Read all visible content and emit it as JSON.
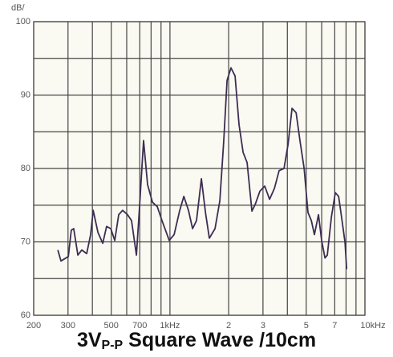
{
  "chart_data": {
    "type": "line",
    "title": {
      "main": "3V",
      "sub": "P-P",
      "rest": " Square Wave /10cm"
    },
    "y_label": "dB/",
    "x_scale": "log",
    "grid": true,
    "xlim": [
      200,
      10000
    ],
    "ylim": [
      60,
      100
    ],
    "xticks": [
      200,
      300,
      500,
      700,
      {
        "value": 1000,
        "label": "1kHz"
      },
      {
        "value": 2000,
        "label": "2"
      },
      {
        "value": 3000,
        "label": "3"
      },
      {
        "value": 5000,
        "label": "5"
      },
      {
        "value": 7000,
        "label": "7"
      },
      {
        "value": 10000,
        "label": "10kHz"
      }
    ],
    "x_minor_grid": [
      400,
      600,
      800,
      900,
      4000,
      6000,
      8000,
      9000
    ],
    "yticks": [
      60,
      70,
      80,
      90,
      100
    ],
    "y_minor_grid": [
      65,
      75,
      85,
      95
    ],
    "series": [
      {
        "color": "#3d2d52",
        "x": [
          266,
          276,
          301,
          312,
          321,
          337,
          353,
          374,
          392,
          404,
          427,
          452,
          473,
          497,
          521,
          546,
          572,
          606,
          635,
          673,
          698,
          732,
          768,
          813,
          861,
          910,
          991,
          1050,
          1122,
          1178,
          1245,
          1306,
          1368,
          1449,
          1521,
          1592,
          1702,
          1803,
          1888,
          1963,
          2056,
          2158,
          2260,
          2372,
          2488,
          2632,
          2736,
          2892,
          3062,
          3243,
          3436,
          3631,
          3846,
          4036,
          4227,
          4436,
          4645,
          4875,
          5105,
          5309,
          5508,
          5781,
          5998,
          6237,
          6412,
          6730,
          7047,
          7328,
          7604,
          7907,
          8054
        ],
        "values": [
          68.9,
          67.4,
          68.0,
          71.6,
          71.8,
          68.2,
          68.9,
          68.4,
          71.0,
          74.3,
          71.3,
          69.8,
          72.1,
          71.8,
          70.2,
          73.7,
          74.3,
          73.7,
          72.9,
          68.2,
          74.8,
          83.8,
          77.8,
          75.4,
          74.8,
          72.9,
          70.2,
          71.0,
          74.3,
          76.2,
          74.3,
          71.8,
          72.9,
          78.6,
          74.0,
          70.5,
          71.8,
          75.6,
          83.8,
          92.0,
          93.7,
          92.6,
          86.0,
          82.2,
          80.8,
          74.2,
          75.1,
          76.9,
          77.6,
          75.8,
          77.3,
          79.7,
          80.0,
          83.3,
          88.2,
          87.6,
          83.8,
          80.0,
          74.0,
          72.9,
          71.0,
          73.7,
          70.2,
          67.8,
          68.2,
          73.4,
          76.7,
          76.2,
          73.2,
          69.9,
          66.3
        ]
      }
    ]
  }
}
